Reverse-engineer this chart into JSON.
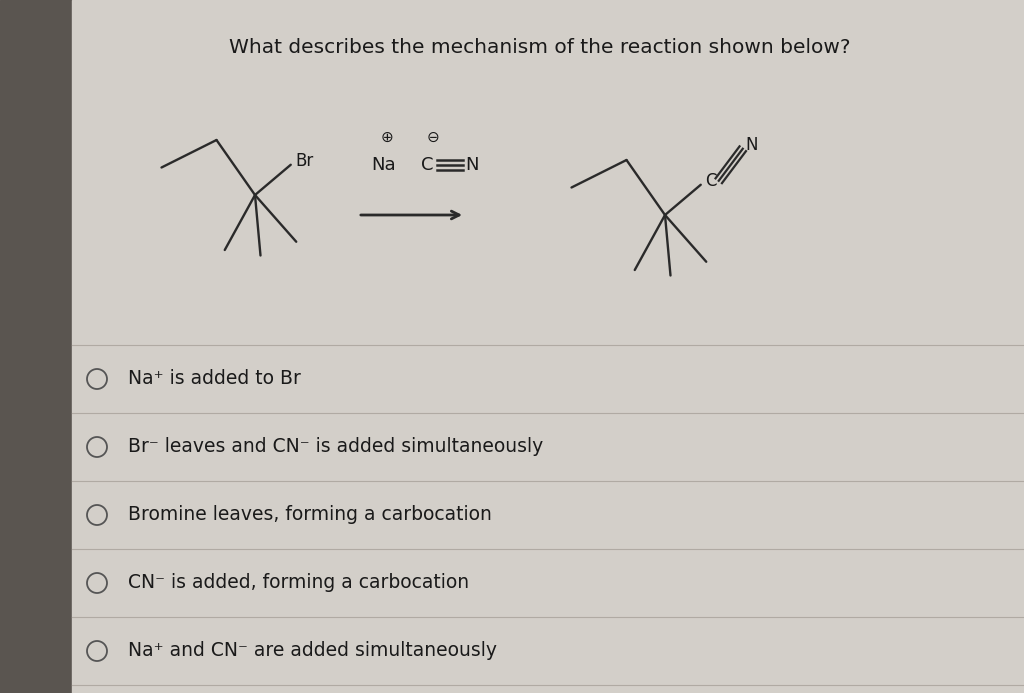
{
  "title": "What describes the mechanism of the reaction shown below?",
  "title_fontsize": 14.5,
  "background_color": "#d3cfc9",
  "text_color": "#1a1a1a",
  "options": [
    "Na⁺ is added to Br",
    "Br⁻ leaves and CN⁻ is added simultaneously",
    "Bromine leaves, forming a carbocation",
    "CN⁻ is added, forming a carbocation",
    "Na⁺ and CN⁻ are added simultaneously"
  ],
  "option_fontsize": 13.5,
  "divider_color": "#b0aaa3",
  "circle_color": "#555555",
  "left_bar_color": "#5a5550",
  "bond_color": "#2a2a2a",
  "bond_lw": 1.7
}
